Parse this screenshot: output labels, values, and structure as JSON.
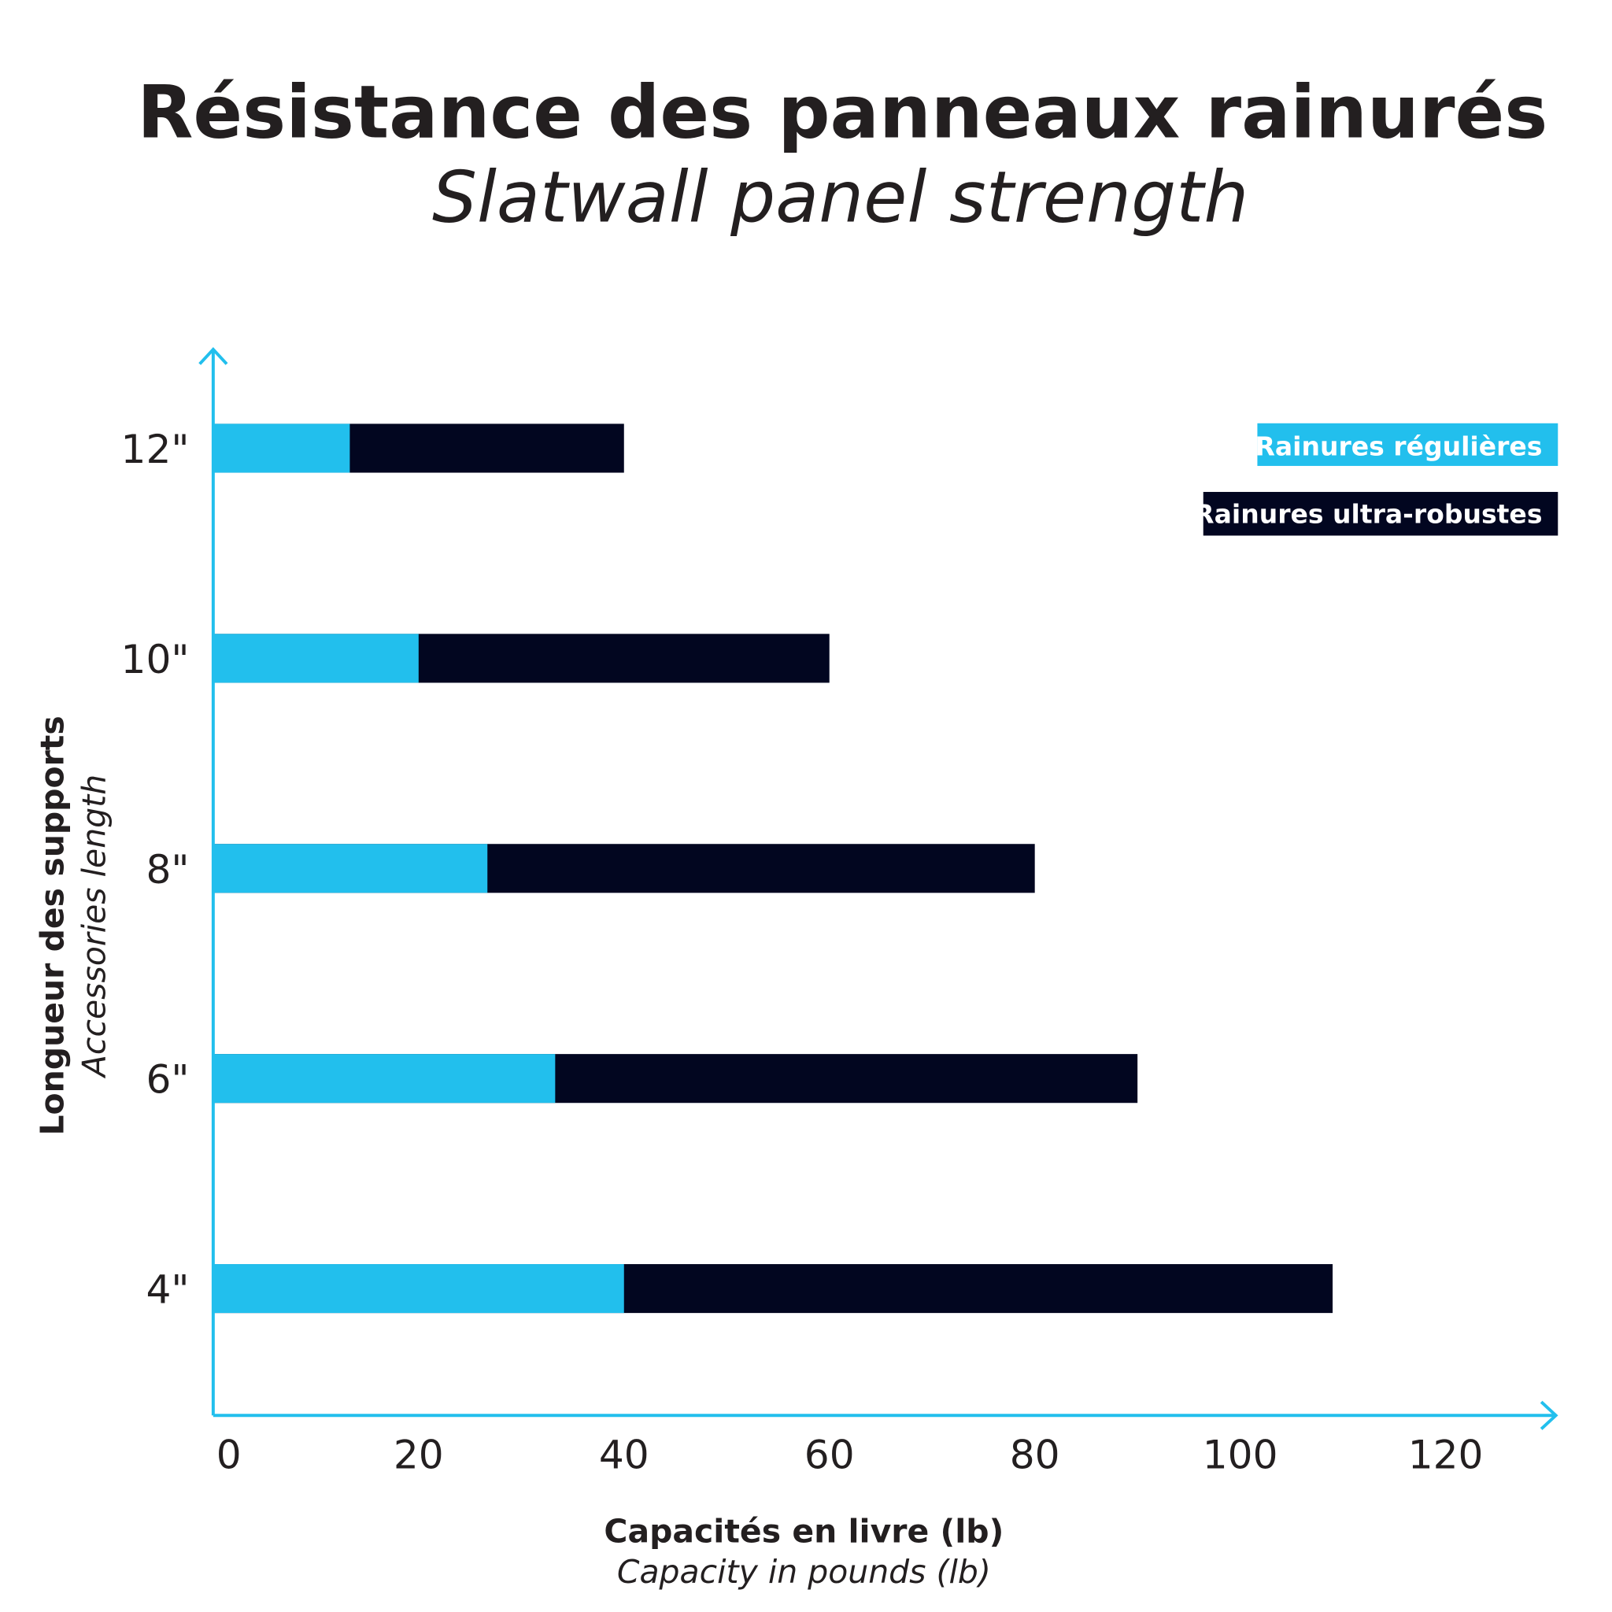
{
  "title": "Résistance des panneaux rainurés",
  "subtitle": "Slatwall panel strength",
  "colors": {
    "regular": "#22bfed",
    "heavy": "#020620",
    "axis": "#22bfed",
    "text": "#231f20"
  },
  "chart_data": {
    "type": "bar",
    "orientation": "horizontal",
    "title": "Résistance des panneaux rainurés",
    "subtitle": "Slatwall panel strength",
    "categories": [
      "12\"",
      "10\"",
      "8\"",
      "6\"",
      "4\""
    ],
    "series": [
      {
        "name": "Rainures régulières",
        "values": [
          13.3,
          20,
          26.7,
          33.3,
          40
        ]
      },
      {
        "name": "Rainures ultra-robustes",
        "values": [
          40,
          60,
          80,
          90,
          109
        ]
      }
    ],
    "xlabel": "Capacités en livre (lb)",
    "xlabel_en": "Capacity in pounds (lb)",
    "ylabel": "Longueur des supports",
    "ylabel_en": "Accessories length",
    "xticks": [
      "0",
      "20",
      "40",
      "60",
      "80",
      "100",
      "120"
    ],
    "xlim": [
      0,
      130
    ],
    "grid": false,
    "legend_position": "top-right"
  }
}
